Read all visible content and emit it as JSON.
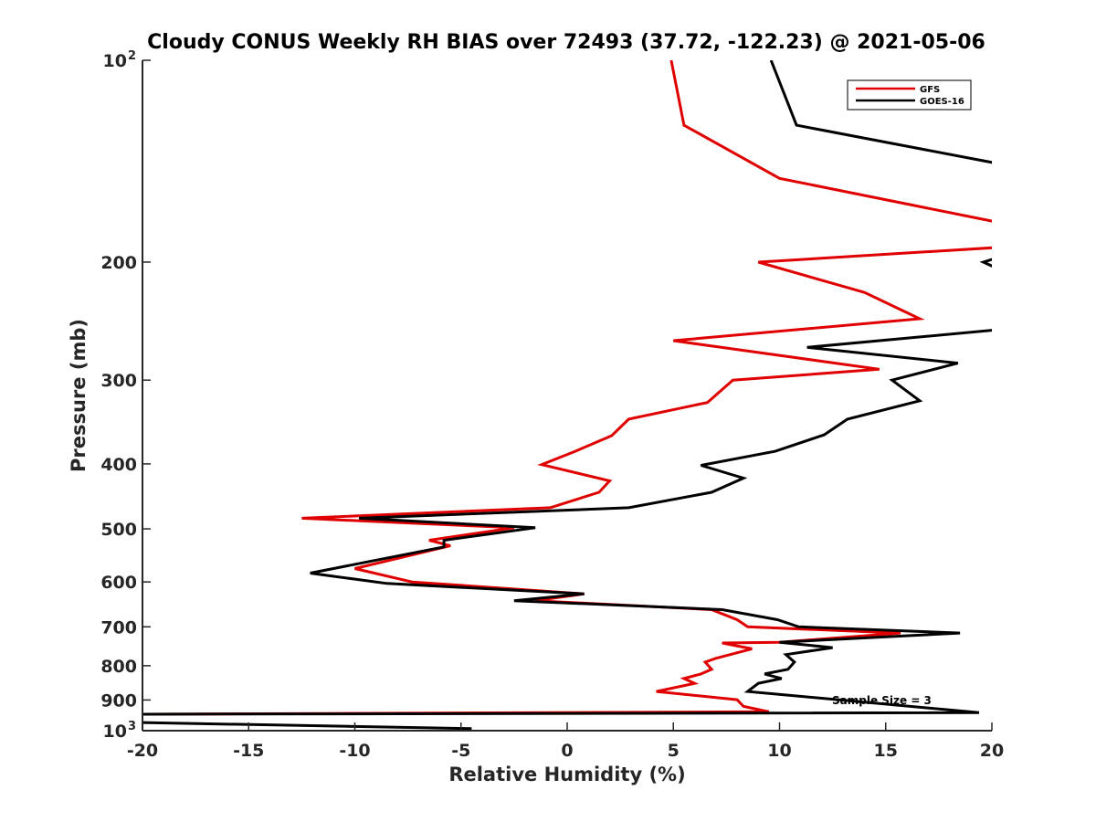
{
  "chart_data": {
    "type": "line",
    "title": "Cloudy CONUS Weekly RH BIAS over 72493 (37.72, -122.23) @ 2021-05-06",
    "xlabel": "Relative Humidity (%)",
    "ylabel": "Pressure (mb)",
    "xlim": [
      -20,
      20
    ],
    "ylim": [
      100,
      1000
    ],
    "y_scale": "log",
    "y_reversed": true,
    "x_ticks": [
      "-20",
      "-15",
      "-10",
      "-5",
      "0",
      "5",
      "10",
      "15",
      "20"
    ],
    "y_ticks": [
      {
        "value": 100,
        "base": "10",
        "exp": "2"
      },
      {
        "value": 200,
        "label": "200"
      },
      {
        "value": 300,
        "label": "300"
      },
      {
        "value": 400,
        "label": "400"
      },
      {
        "value": 500,
        "label": "500"
      },
      {
        "value": 600,
        "label": "600"
      },
      {
        "value": 700,
        "label": "700"
      },
      {
        "value": 800,
        "label": "800"
      },
      {
        "value": 900,
        "label": "900"
      },
      {
        "value": 1000,
        "base": "10",
        "exp": "3"
      }
    ],
    "legend_position": "top-right",
    "annotation": "Sample Size = 3",
    "series": [
      {
        "name": "GFS",
        "color": "#e00000",
        "points": [
          [
            4.9,
            100
          ],
          [
            5.5,
            125
          ],
          [
            10.0,
            150
          ],
          [
            20.5,
            175
          ],
          [
            20.5,
            190
          ],
          [
            9.0,
            200
          ],
          [
            14.0,
            222
          ],
          [
            16.6,
            243
          ],
          [
            5.0,
            262
          ],
          [
            14.7,
            289
          ],
          [
            7.8,
            300
          ],
          [
            6.6,
            324
          ],
          [
            2.9,
            343
          ],
          [
            2.1,
            363
          ],
          [
            0.3,
            384
          ],
          [
            -1.2,
            401
          ],
          [
            2.0,
            424
          ],
          [
            1.5,
            441
          ],
          [
            -0.8,
            465
          ],
          [
            -12.5,
            482
          ],
          [
            -2.5,
            498
          ],
          [
            -6.5,
            520
          ],
          [
            -5.5,
            530
          ],
          [
            -10.0,
            573
          ],
          [
            -7.3,
            600
          ],
          [
            0.8,
            625
          ],
          [
            -1.5,
            640
          ],
          [
            6.8,
            660
          ],
          [
            8.0,
            683
          ],
          [
            8.5,
            700
          ],
          [
            15.7,
            715
          ],
          [
            10.0,
            738
          ],
          [
            7.3,
            740
          ],
          [
            8.7,
            755
          ],
          [
            7.0,
            780
          ],
          [
            6.5,
            790
          ],
          [
            6.8,
            810
          ],
          [
            6.3,
            823
          ],
          [
            5.5,
            836
          ],
          [
            6.0,
            850
          ],
          [
            4.2,
            874
          ],
          [
            8.0,
            899
          ],
          [
            8.3,
            920
          ],
          [
            9.5,
            937
          ],
          [
            -20.5,
            945
          ]
        ]
      },
      {
        "name": "GOES-16",
        "color": "#000000",
        "points": [
          [
            9.6,
            100
          ],
          [
            10.8,
            125
          ],
          [
            20.5,
            143
          ],
          [
            20.5,
            196
          ],
          [
            19.6,
            200
          ],
          [
            20.5,
            206
          ],
          [
            20.5,
            252
          ],
          [
            11.3,
            268
          ],
          [
            18.4,
            283
          ],
          [
            15.3,
            300
          ],
          [
            16.6,
            322
          ],
          [
            13.2,
            343
          ],
          [
            12.1,
            362
          ],
          [
            9.8,
            383
          ],
          [
            6.3,
            402
          ],
          [
            8.3,
            420
          ],
          [
            6.8,
            441
          ],
          [
            2.9,
            465
          ],
          [
            -9.8,
            482
          ],
          [
            -1.5,
            498
          ],
          [
            -5.8,
            520
          ],
          [
            -5.8,
            532
          ],
          [
            -12.1,
            582
          ],
          [
            -8.5,
            603
          ],
          [
            0.8,
            625
          ],
          [
            -2.5,
            640
          ],
          [
            7.3,
            660
          ],
          [
            9.9,
            683
          ],
          [
            10.9,
            700
          ],
          [
            18.5,
            715
          ],
          [
            10.0,
            738
          ],
          [
            12.5,
            752
          ],
          [
            10.3,
            770
          ],
          [
            10.7,
            790
          ],
          [
            10.4,
            810
          ],
          [
            9.3,
            823
          ],
          [
            10.1,
            836
          ],
          [
            9.0,
            850
          ],
          [
            8.5,
            874
          ],
          [
            19.4,
            940
          ],
          [
            -20.5,
            945
          ],
          [
            -20.5,
            972
          ],
          [
            -4.5,
            993
          ]
        ]
      }
    ]
  }
}
